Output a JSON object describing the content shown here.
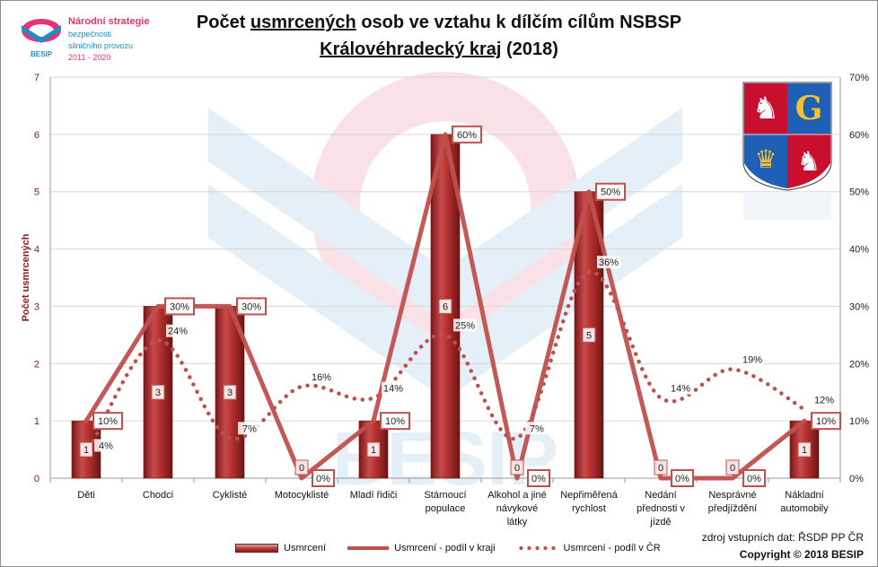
{
  "logo": {
    "brand": "BESIP",
    "line1": "Národní strategie",
    "line2": "bezpečnosti",
    "line3": "silničního provozu",
    "line4": "2011 - 2020"
  },
  "watermark": "BESIP",
  "source_note": "zdroj vstupních dat: ŘSDP PP ČR",
  "copyright": "Copyright © 2018 BESIP",
  "colors": {
    "bar": "#a52a2a",
    "line": "#c0504d",
    "title_accent": "#e8336d"
  },
  "chart_data": {
    "type": "bar",
    "title_parts": [
      "Počet ",
      "usmrcených",
      " osob ve vztahu k dílčím cílům NSBSP"
    ],
    "subtitle_parts": [
      "Královéhradecký kraj",
      " (2018)"
    ],
    "ylabel": "Počet usmrcených",
    "ylim": [
      0,
      7
    ],
    "y_ticks": [
      "0",
      "1",
      "2",
      "3",
      "4",
      "5",
      "6",
      "7"
    ],
    "y2lim": [
      0,
      70
    ],
    "y2_ticks": [
      "0%",
      "10%",
      "20%",
      "30%",
      "40%",
      "50%",
      "60%",
      "70%"
    ],
    "categories": [
      [
        "Děti"
      ],
      [
        "Chodci"
      ],
      [
        "Cyklisté"
      ],
      [
        "Motocyklisté"
      ],
      [
        "Mladí řidiči"
      ],
      [
        "Stárnoucí",
        "populace"
      ],
      [
        "Alkohol a jiné",
        "návykové",
        "látky"
      ],
      [
        "Nepřiměřená",
        "rychlost"
      ],
      [
        "Nedání",
        "přednosti v",
        "jízdě"
      ],
      [
        "Nesprávné",
        "předjíždění"
      ],
      [
        "Nákladní",
        "automobily"
      ]
    ],
    "series": [
      {
        "name": "Usmrcení",
        "axis": "left",
        "values": [
          1,
          3,
          3,
          0,
          1,
          6,
          0,
          5,
          0,
          0,
          1
        ],
        "labels": [
          "1",
          "3",
          "3",
          "0",
          "1",
          "6",
          "0",
          "5",
          "0",
          "0",
          "1"
        ]
      },
      {
        "name": "Usmrcení - podíl v kraji",
        "axis": "right",
        "values": [
          10,
          30,
          30,
          0,
          10,
          60,
          0,
          50,
          0,
          0,
          10
        ],
        "labels": [
          "10%",
          "30%",
          "30%",
          "0%",
          "10%",
          "60%",
          "0%",
          "50%",
          "0%",
          "0%",
          "10%"
        ]
      },
      {
        "name": "Usmrcení - podíl v ČR",
        "axis": "right",
        "values": [
          4,
          24,
          7,
          16,
          14,
          25,
          7,
          36,
          14,
          19,
          12
        ],
        "labels": [
          "4%",
          "24%",
          "7%",
          "16%",
          "14%",
          "25%",
          "7%",
          "36%",
          "14%",
          "19%",
          "12%"
        ]
      }
    ],
    "grid": true,
    "legend_position": "bottom"
  }
}
